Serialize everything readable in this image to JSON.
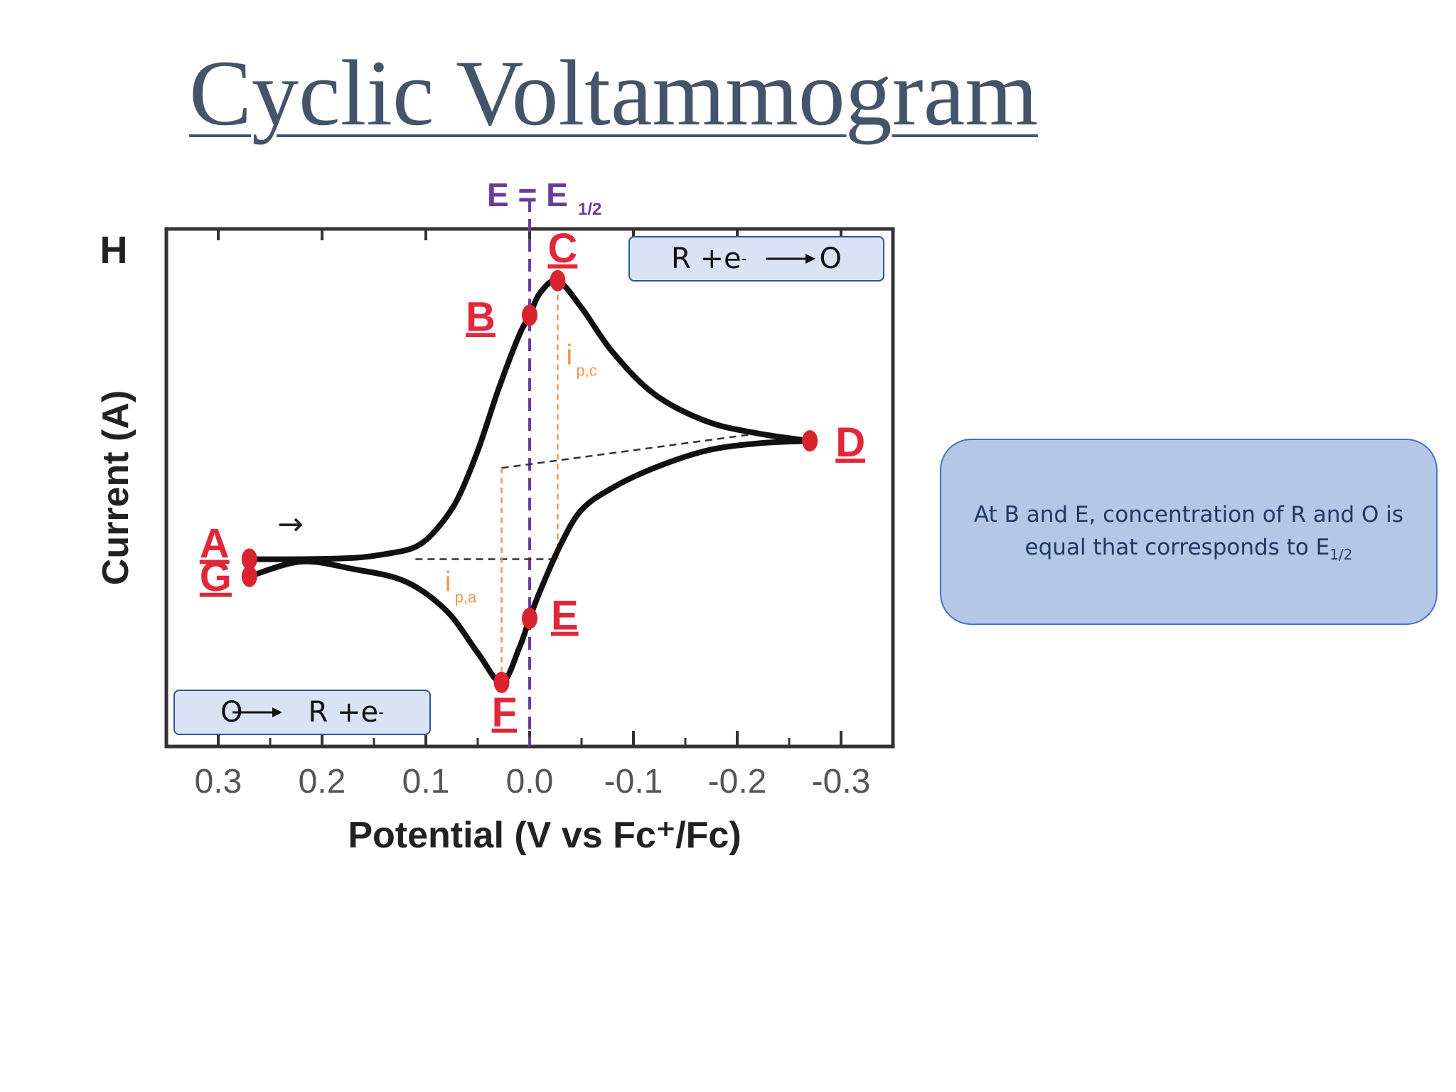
{
  "slide": {
    "title": "Cyclic Voltammogram"
  },
  "callout": {
    "text_main": "At B and E, concentration of R and O is equal that corresponds to E",
    "text_sub": "1/2"
  },
  "reactions": {
    "oxidation": {
      "left": "R +e",
      "sup": "-",
      "right": "O"
    },
    "reduction": {
      "left": "O",
      "right": "R +e",
      "sup": "-"
    }
  },
  "colors": {
    "curve": "#111111",
    "points": "#d9232e",
    "point_labels": "#e0283a",
    "e_half_line": "#6a3d9a",
    "peak_lines": "#f29554",
    "baseline_dash": "#333333",
    "axes": "#333333",
    "tick_labels": "#555555",
    "title": "#44546a"
  },
  "chart_data": {
    "type": "line",
    "xlabel": "Potential (V vs Fc⁺/Fc)",
    "ylabel": "Current (A)",
    "panel_label": "H",
    "x_reversed": true,
    "xlim": [
      0.35,
      -0.35
    ],
    "ylim": [
      -1.1,
      1.0
    ],
    "x_ticks": [
      0.3,
      0.2,
      0.1,
      0.0,
      -0.1,
      -0.2,
      -0.3
    ],
    "x_tick_labels": [
      "0.3",
      "0.2",
      "0.1",
      "0.0",
      "-0.1",
      "-0.2",
      "-0.3"
    ],
    "vertical_marker": {
      "x": 0.0,
      "label": "E = E",
      "label_sub": "1/2"
    },
    "series": [
      {
        "x": [
          0.27,
          0.22,
          0.17,
          0.14,
          0.11,
          0.09,
          0.07,
          0.05,
          0.03,
          0.01,
          0.0,
          -0.01,
          -0.027,
          -0.05,
          -0.08,
          -0.12,
          -0.17,
          -0.22,
          -0.27
        ],
        "y": [
          -0.34,
          -0.34,
          -0.335,
          -0.32,
          -0.29,
          -0.22,
          -0.1,
          0.1,
          0.35,
          0.57,
          0.65,
          0.74,
          0.79,
          0.68,
          0.5,
          0.33,
          0.22,
          0.17,
          0.14
        ]
      },
      {
        "x": [
          -0.27,
          -0.22,
          -0.17,
          -0.12,
          -0.08,
          -0.05,
          -0.03,
          -0.01,
          0.0,
          0.01,
          0.027,
          0.05,
          0.08,
          0.12,
          0.17,
          0.22,
          0.27
        ],
        "y": [
          0.14,
          0.13,
          0.1,
          0.03,
          -0.05,
          -0.14,
          -0.28,
          -0.47,
          -0.58,
          -0.7,
          -0.84,
          -0.72,
          -0.55,
          -0.43,
          -0.38,
          -0.35,
          -0.41
        ]
      }
    ],
    "points": [
      {
        "label": "A",
        "x": 0.27,
        "y": -0.34
      },
      {
        "label": "B",
        "x": 0.0,
        "y": 0.65
      },
      {
        "label": "C",
        "x": -0.027,
        "y": 0.79
      },
      {
        "label": "D",
        "x": -0.27,
        "y": 0.14
      },
      {
        "label": "E",
        "x": 0.0,
        "y": -0.58
      },
      {
        "label": "F",
        "x": 0.027,
        "y": -0.84
      },
      {
        "label": "G",
        "x": 0.27,
        "y": -0.41
      }
    ],
    "peak_annotations": [
      {
        "label": "i",
        "label_sub": "p,c",
        "x": -0.027,
        "y_from": -0.34,
        "y_to": 0.79
      },
      {
        "label": "i",
        "label_sub": "p,a",
        "x": 0.027,
        "y_from": -0.84,
        "y_to": 0.03
      }
    ],
    "baselines": [
      {
        "x": [
          0.11,
          -0.027
        ],
        "y": [
          -0.34,
          -0.34
        ]
      },
      {
        "x": [
          0.027,
          -0.22
        ],
        "y": [
          0.03,
          0.17
        ]
      }
    ],
    "direction_arrow": {
      "label": "→",
      "x": 0.25,
      "y": -0.24
    }
  }
}
